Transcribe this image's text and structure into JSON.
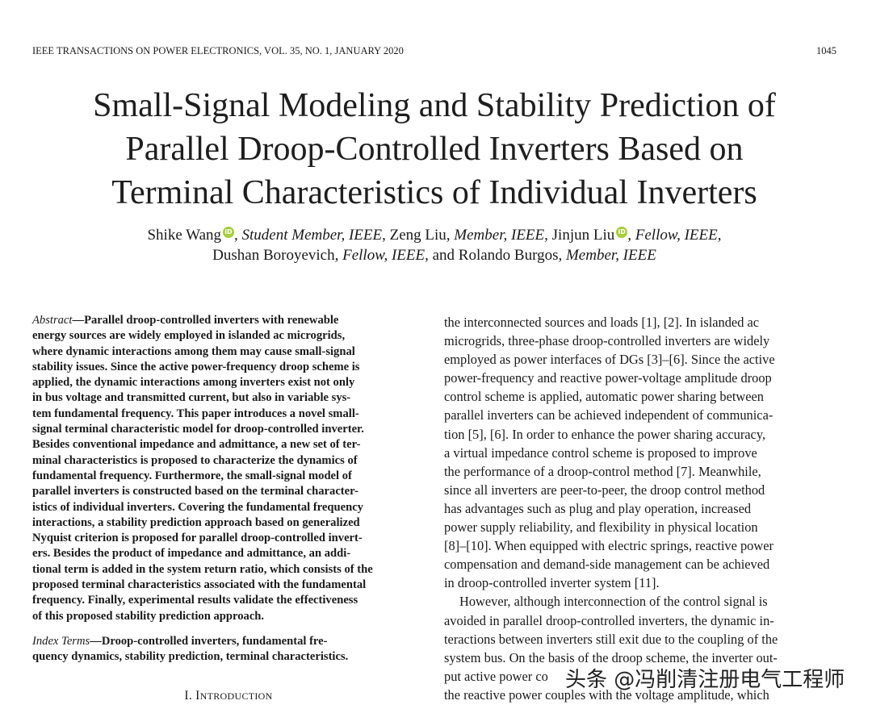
{
  "header": {
    "journal": "IEEE TRANSACTIONS ON POWER ELECTRONICS, VOL. 35, NO. 1, JANUARY 2020",
    "page_number": "1045"
  },
  "title_lines": [
    "Small-Signal Modeling and Stability Prediction of",
    "Parallel Droop-Controlled Inverters Based on",
    "Terminal Characteristics of Individual Inverters"
  ],
  "authors": {
    "a1_name": "Shike Wang",
    "a1_role": ", Student Member, IEEE",
    "a2_name": ", Zeng Liu",
    "a2_role": ", Member, IEEE",
    "a3_name": ", Jinjun Liu",
    "a3_role": ", Fellow, IEEE",
    "a3_end": ",",
    "a4_name": "Dushan Boroyevich",
    "a4_role": ", Fellow, IEEE",
    "a5_name": ", and Rolando Burgos",
    "a5_role": ", Member, IEEE",
    "orcid_glyph": "iD"
  },
  "abstract": {
    "label": "Abstract",
    "first_line": "—Parallel droop-controlled inverters with renewable",
    "lines": [
      "energy sources are widely employed in islanded ac microgrids,",
      "where dynamic interactions among them may cause small-signal",
      "stability issues. Since the active power-frequency droop scheme is",
      "applied, the dynamic interactions among inverters exist not only",
      "in bus voltage and transmitted current, but also in variable sys-",
      "tem fundamental frequency. This paper introduces a novel small-",
      "signal terminal characteristic model for droop-controlled inverter.",
      "Besides conventional impedance and admittance, a new set of ter-",
      "minal characteristics is proposed to characterize the dynamics of",
      "fundamental frequency. Furthermore, the small-signal model of",
      "parallel inverters is constructed based on the terminal character-",
      "istics of individual inverters. Covering the fundamental frequency",
      "interactions, a stability prediction approach based on generalized",
      "Nyquist criterion is proposed for parallel droop-controlled invert-",
      "ers. Besides the product of impedance and admittance, an addi-",
      "tional term is added in the system return ratio, which consists of the",
      "proposed terminal characteristics associated with the fundamental",
      "frequency. Finally, experimental results validate the effectiveness",
      "of this proposed stability prediction approach."
    ]
  },
  "index_terms": {
    "label": "Index Terms",
    "line1": "—Droop-controlled inverters, fundamental fre-",
    "line2": "quency dynamics, stability prediction, terminal characteristics."
  },
  "section": {
    "numeral": "I. I",
    "name_rest": "NTRODUCTION"
  },
  "right_column": {
    "lines": [
      "the interconnected sources and loads [1], [2]. In islanded ac",
      "microgrids, three-phase droop-controlled inverters are widely",
      "employed as power interfaces of DGs [3]–[6]. Since the active",
      "power-frequency and reactive power-voltage amplitude droop",
      "control scheme is applied, automatic power sharing between",
      "parallel inverters can be achieved independent of communica-",
      "tion [5], [6]. In order to enhance the power sharing accuracy,",
      "a virtual impedance control scheme is proposed to improve",
      "the performance of a droop-control method [7]. Meanwhile,",
      "since all inverters are peer-to-peer, the droop control method",
      "has advantages such as plug and play operation, increased",
      "power supply reliability, and flexibility in physical location",
      "[8]–[10]. When equipped with electric springs, reactive power",
      "compensation and demand-side management can be achieved",
      "in droop-controlled inverter system [11]."
    ],
    "para2_lines": [
      "However, although interconnection of the control signal is",
      "avoided in parallel droop-controlled inverters, the dynamic in-",
      "teractions between inverters still exit due to the coupling of the",
      "system bus. On the basis of the droop scheme, the inverter out-",
      "put active power co",
      "the reactive power couples with the voltage amplitude, which"
    ]
  },
  "watermark": "头条 @冯削清注册电气工程师"
}
